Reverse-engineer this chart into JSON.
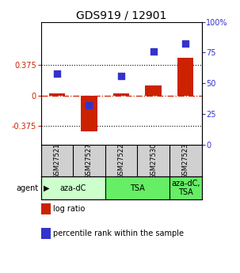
{
  "title": "GDS919 / 12901",
  "samples": [
    "GSM27521",
    "GSM27527",
    "GSM27522",
    "GSM27530",
    "GSM27523"
  ],
  "log_ratios": [
    0.02,
    -0.44,
    0.02,
    0.12,
    0.46
  ],
  "percentile_ranks": [
    58,
    32,
    56,
    76,
    82
  ],
  "ylim_left": [
    -0.6,
    0.9
  ],
  "ylim_right": [
    0,
    100
  ],
  "yticks_left": [
    -0.375,
    0,
    0.375
  ],
  "yticks_right": [
    0,
    25,
    50,
    75,
    100
  ],
  "hlines": [
    0.375,
    -0.375
  ],
  "bar_color": "#cc2200",
  "dot_color": "#3333cc",
  "dashed_line_color": "#cc2200",
  "agent_groups": [
    {
      "label": "aza-dC",
      "span": [
        0,
        2
      ],
      "color": "#ccffcc"
    },
    {
      "label": "TSA",
      "span": [
        2,
        4
      ],
      "color": "#66ee66"
    },
    {
      "label": "aza-dC,\nTSA",
      "span": [
        4,
        5
      ],
      "color": "#66ee66"
    }
  ],
  "agent_label": "agent",
  "legend_items": [
    {
      "color": "#cc2200",
      "label": "log ratio"
    },
    {
      "color": "#3333cc",
      "label": "percentile rank within the sample"
    }
  ],
  "bar_width": 0.5,
  "dot_size": 28,
  "background_color": "#ffffff",
  "title_fontsize": 10,
  "tick_fontsize": 7,
  "sample_fontsize": 6,
  "agent_fontsize": 7,
  "legend_fontsize": 7
}
